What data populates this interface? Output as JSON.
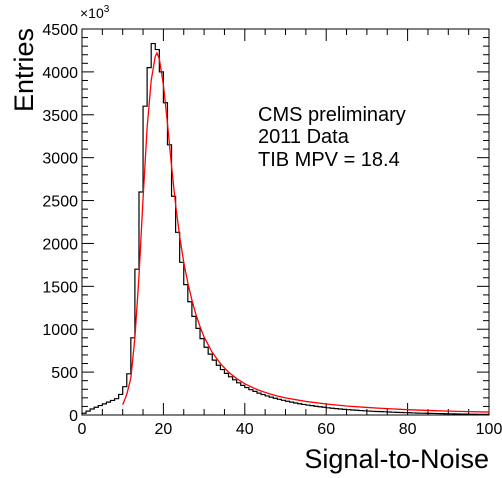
{
  "chart_data": {
    "type": "histogram",
    "xlabel": "Signal-to-Noise",
    "ylabel": "Entries",
    "y_multiplier_label": "×10",
    "y_multiplier_exponent": "3",
    "xlim": [
      0,
      100
    ],
    "ylim": [
      0,
      4500
    ],
    "x_ticks": [
      0,
      20,
      40,
      60,
      80,
      100
    ],
    "y_ticks": [
      0,
      500,
      1000,
      1500,
      2000,
      2500,
      3000,
      3500,
      4000,
      4500
    ],
    "x_tick_labels": [
      "0",
      "20",
      "40",
      "60",
      "80",
      "100"
    ],
    "y_tick_labels": [
      "0",
      "500",
      "1000",
      "1500",
      "2000",
      "2500",
      "3000",
      "3500",
      "4000",
      "4500"
    ],
    "grid": false,
    "annotations": [
      "CMS preliminary",
      "2011 Data",
      "TIB MPV = 18.4"
    ],
    "series": [
      {
        "kind": "histogram",
        "color": "#000000",
        "bin_edges": [
          0,
          1,
          2,
          3,
          4,
          5,
          6,
          7,
          8,
          9,
          10,
          11,
          12,
          13,
          14,
          15,
          16,
          17,
          18,
          19,
          20,
          21,
          22,
          23,
          24,
          25,
          26,
          27,
          28,
          29,
          30,
          31,
          32,
          33,
          34,
          35,
          36,
          37,
          38,
          39,
          40,
          41,
          42,
          43,
          44,
          45,
          46,
          47,
          48,
          49,
          50,
          51,
          52,
          53,
          54,
          55,
          56,
          57,
          58,
          59,
          60,
          61,
          62,
          63,
          64,
          65,
          66,
          67,
          68,
          69,
          70,
          71,
          72,
          73,
          74,
          75,
          76,
          77,
          78,
          79,
          80,
          81,
          82,
          83,
          84,
          85,
          86,
          87,
          88,
          89,
          90,
          91,
          92,
          93,
          94,
          95,
          96,
          97,
          98,
          99,
          100
        ],
        "counts": [
          20,
          45,
          70,
          90,
          110,
          130,
          150,
          170,
          190,
          240,
          330,
          480,
          900,
          1700,
          2600,
          3600,
          4050,
          4330,
          4260,
          4000,
          3640,
          3150,
          2550,
          2130,
          1780,
          1520,
          1320,
          1150,
          1010,
          890,
          790,
          710,
          640,
          580,
          530,
          485,
          445,
          410,
          375,
          345,
          320,
          295,
          275,
          255,
          238,
          222,
          208,
          195,
          183,
          171,
          160,
          150,
          140,
          131,
          123,
          116,
          109,
          102,
          96,
          90,
          84,
          79,
          74,
          70,
          66,
          62,
          58,
          55,
          52,
          49,
          46,
          43,
          41,
          39,
          37,
          35,
          33,
          31,
          29,
          27,
          26,
          24,
          22,
          21,
          20,
          19,
          18,
          17,
          16,
          15,
          14,
          13,
          12,
          11,
          10,
          9,
          9,
          8,
          8,
          7
        ]
      },
      {
        "kind": "fit",
        "color": "#ff0000",
        "x": [
          10,
          11,
          12,
          13,
          14,
          15,
          16,
          17,
          18,
          18.4,
          19,
          20,
          21,
          22,
          23,
          24,
          25,
          26,
          27,
          28,
          29,
          30,
          32,
          34,
          36,
          38,
          40,
          42,
          44,
          46,
          48,
          50,
          55,
          60,
          65,
          70,
          75,
          80,
          85,
          90,
          95,
          100
        ],
        "y": [
          120,
          240,
          430,
          900,
          1620,
          2520,
          3350,
          3900,
          4180,
          4220,
          4150,
          3850,
          3400,
          2900,
          2450,
          2080,
          1780,
          1540,
          1340,
          1170,
          1030,
          910,
          730,
          600,
          500,
          425,
          365,
          318,
          280,
          248,
          222,
          200,
          158,
          128,
          105,
          88,
          74,
          62,
          53,
          45,
          39,
          34
        ]
      }
    ]
  }
}
